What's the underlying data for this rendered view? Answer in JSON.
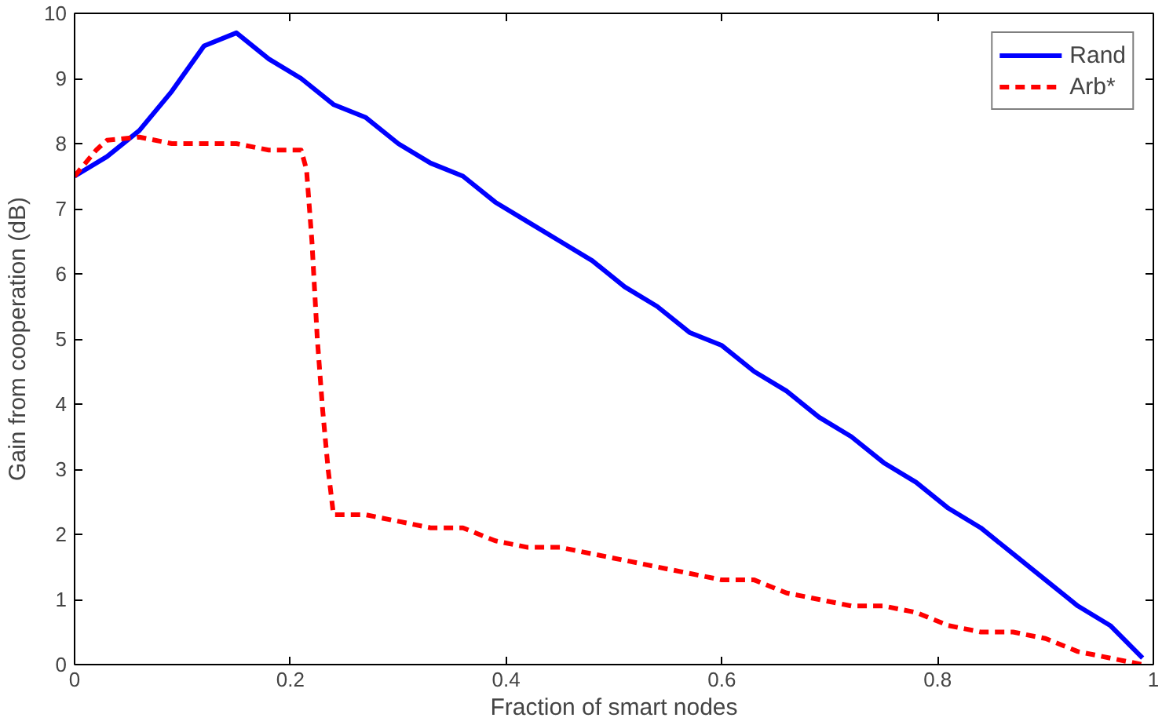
{
  "chart_data": {
    "type": "line",
    "xlabel": "Fraction of smart nodes",
    "ylabel": "Gain from cooperation (dB)",
    "xlim": [
      0,
      1
    ],
    "ylim": [
      0,
      10
    ],
    "xticks": [
      0,
      0.2,
      0.4,
      0.6,
      0.8,
      1
    ],
    "yticks": [
      0,
      1,
      2,
      3,
      4,
      5,
      6,
      7,
      8,
      9,
      10
    ],
    "grid": false,
    "legend": "top right",
    "series": [
      {
        "name": "Rand",
        "color": "#0000ff",
        "line_style": "solid",
        "x": [
          0,
          0.03,
          0.06,
          0.09,
          0.12,
          0.15,
          0.18,
          0.21,
          0.24,
          0.27,
          0.3,
          0.33,
          0.36,
          0.39,
          0.42,
          0.45,
          0.48,
          0.51,
          0.54,
          0.57,
          0.6,
          0.63,
          0.66,
          0.69,
          0.72,
          0.75,
          0.78,
          0.81,
          0.84,
          0.87,
          0.9,
          0.93,
          0.96,
          0.99
        ],
        "values": [
          7.5,
          7.8,
          8.2,
          8.8,
          9.5,
          9.7,
          9.3,
          9.0,
          8.6,
          8.4,
          8.0,
          7.7,
          7.5,
          7.1,
          6.8,
          6.5,
          6.2,
          5.8,
          5.5,
          5.1,
          4.9,
          4.5,
          4.2,
          3.8,
          3.5,
          3.1,
          2.8,
          2.4,
          2.1,
          1.7,
          1.3,
          0.9,
          0.6,
          0.1
        ]
      },
      {
        "name": "Arb*",
        "color": "#ff0000",
        "line_style": "dashed",
        "x": [
          0,
          0.02,
          0.03,
          0.06,
          0.09,
          0.15,
          0.18,
          0.21,
          0.215,
          0.22,
          0.225,
          0.23,
          0.235,
          0.24,
          0.27,
          0.3,
          0.33,
          0.36,
          0.39,
          0.42,
          0.45,
          0.48,
          0.51,
          0.54,
          0.57,
          0.6,
          0.63,
          0.66,
          0.69,
          0.72,
          0.75,
          0.78,
          0.81,
          0.84,
          0.87,
          0.9,
          0.93,
          0.96,
          0.99
        ],
        "values": [
          7.5,
          7.9,
          8.05,
          8.1,
          8.0,
          8.0,
          7.9,
          7.9,
          7.6,
          6.5,
          5.0,
          3.9,
          3.0,
          2.3,
          2.3,
          2.2,
          2.1,
          2.1,
          1.9,
          1.8,
          1.8,
          1.7,
          1.6,
          1.5,
          1.4,
          1.3,
          1.3,
          1.1,
          1.0,
          0.9,
          0.9,
          0.8,
          0.6,
          0.5,
          0.5,
          0.4,
          0.2,
          0.1,
          0.0
        ]
      }
    ]
  }
}
